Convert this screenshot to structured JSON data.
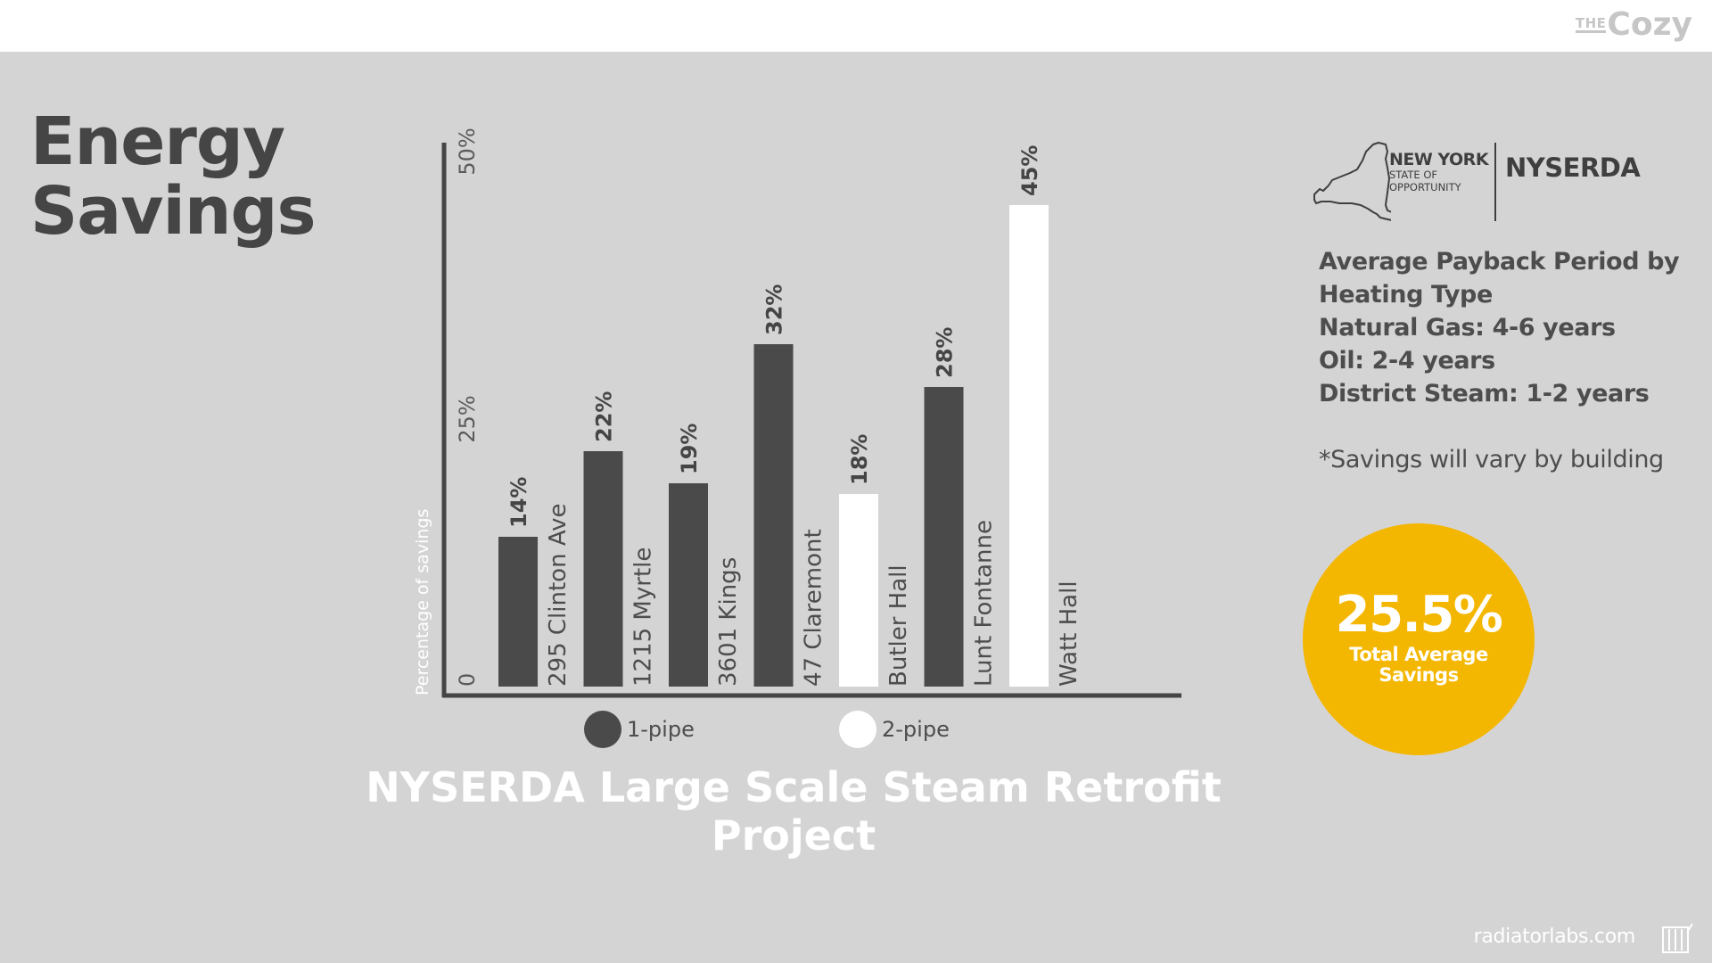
{
  "header": {
    "brand_prefix": "THE",
    "brand_name": "Cozy"
  },
  "page_title": {
    "line1": "Energy",
    "line2": "Savings"
  },
  "chart_data": {
    "type": "bar",
    "title": "NYSERDA Large Scale Steam Retrofit Project",
    "ylabel": "Percentage of savings",
    "xlabel": "",
    "ylim": [
      0,
      50
    ],
    "y_ticks": [
      "0",
      "25%",
      "50%"
    ],
    "categories": [
      "295 Clinton Ave",
      "1215 Myrtle",
      "3601 Kings",
      "47 Claremont",
      "Butler Hall",
      "Lunt Fontanne",
      "Watt Hall"
    ],
    "values": [
      14,
      22,
      19,
      32,
      18,
      28,
      45
    ],
    "value_labels": [
      "14%",
      "22%",
      "19%",
      "32%",
      "18%",
      "28%",
      "45%"
    ],
    "pipe_type": [
      "1-pipe",
      "1-pipe",
      "1-pipe",
      "1-pipe",
      "2-pipe",
      "1-pipe",
      "2-pipe"
    ],
    "legend": [
      {
        "label": "1-pipe",
        "color": "#4a4a4b"
      },
      {
        "label": "2-pipe",
        "color": "#ffffff"
      }
    ],
    "legend_position": "bottom",
    "grid": false
  },
  "logo": {
    "line1": "NEW YORK",
    "line2": "STATE OF",
    "line3": "OPPORTUNITY",
    "org": "NYSERDA"
  },
  "payback": {
    "lines": [
      "Average Payback Period by",
      "Heating Type",
      "Natural Gas: 4-6 years",
      "Oil: 2-4 years",
      "District Steam: 1-2 years"
    ],
    "note": "*Savings will vary by building"
  },
  "highlight": {
    "value": "25.5%",
    "label": "Total Average Savings"
  },
  "footer": {
    "url": "radiatorlabs.com"
  },
  "colors": {
    "background": "#d5d4d5",
    "bar_dark": "#4a4a4b",
    "bar_light": "#ffffff",
    "accent": "#f4b701",
    "text_dark": "#454546"
  }
}
